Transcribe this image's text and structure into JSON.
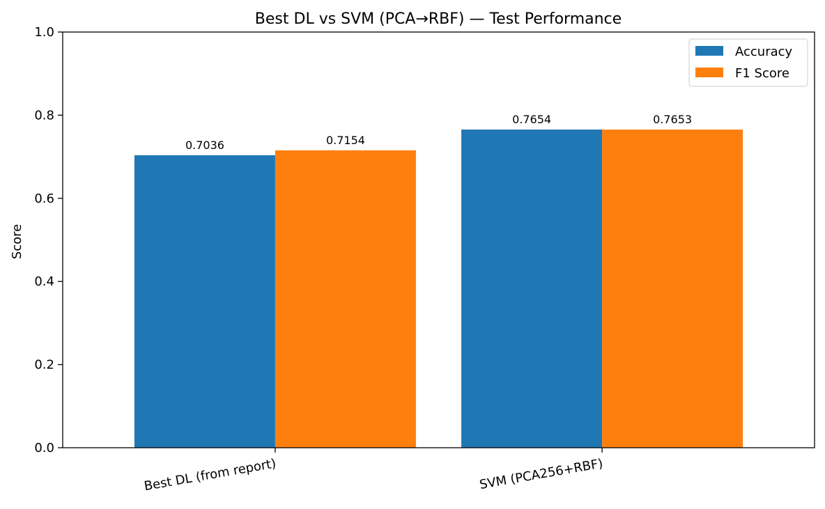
{
  "chart_data": {
    "type": "bar",
    "title": "Best DL vs SVM (PCA→RBF) — Test Performance",
    "xlabel": "",
    "ylabel": "Score",
    "ylim": [
      0,
      1.0
    ],
    "yticks": [
      "0.0",
      "0.2",
      "0.4",
      "0.6",
      "0.8",
      "1.0"
    ],
    "categories": [
      "Best DL (from report)",
      "SVM (PCA256+RBF)"
    ],
    "series": [
      {
        "name": "Accuracy",
        "color": "#1f77b4",
        "values": [
          0.7036,
          0.7654
        ],
        "labels": [
          "0.7036",
          "0.7654"
        ]
      },
      {
        "name": "F1 Score",
        "color": "#ff7f0e",
        "values": [
          0.7154,
          0.7653
        ],
        "labels": [
          "0.7154",
          "0.7653"
        ]
      }
    ],
    "legend_position": "top-right",
    "grid": false
  }
}
